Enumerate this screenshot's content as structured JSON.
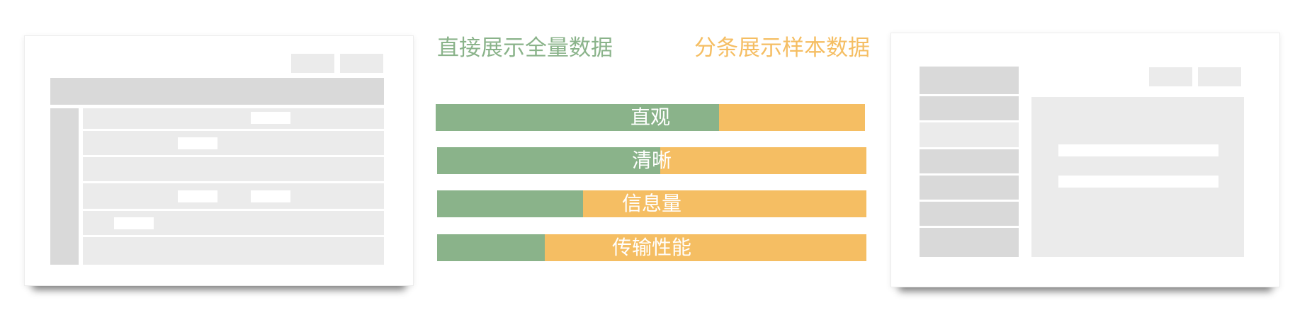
{
  "headings": {
    "full_data": "直接展示全量数据",
    "sampled_data": "分条展示样本数据"
  },
  "colors": {
    "green": "#8ab38a",
    "orange": "#f5be63",
    "card_gray_light": "#ebebeb",
    "card_gray_mid": "#d9d9d9"
  },
  "comparison": [
    {
      "label": "直观",
      "green_fraction": 0.66
    },
    {
      "label": "清晰",
      "green_fraction": 0.52
    },
    {
      "label": "信息量",
      "green_fraction": 0.34
    },
    {
      "label": "传输性能",
      "green_fraction": 0.25
    }
  ]
}
